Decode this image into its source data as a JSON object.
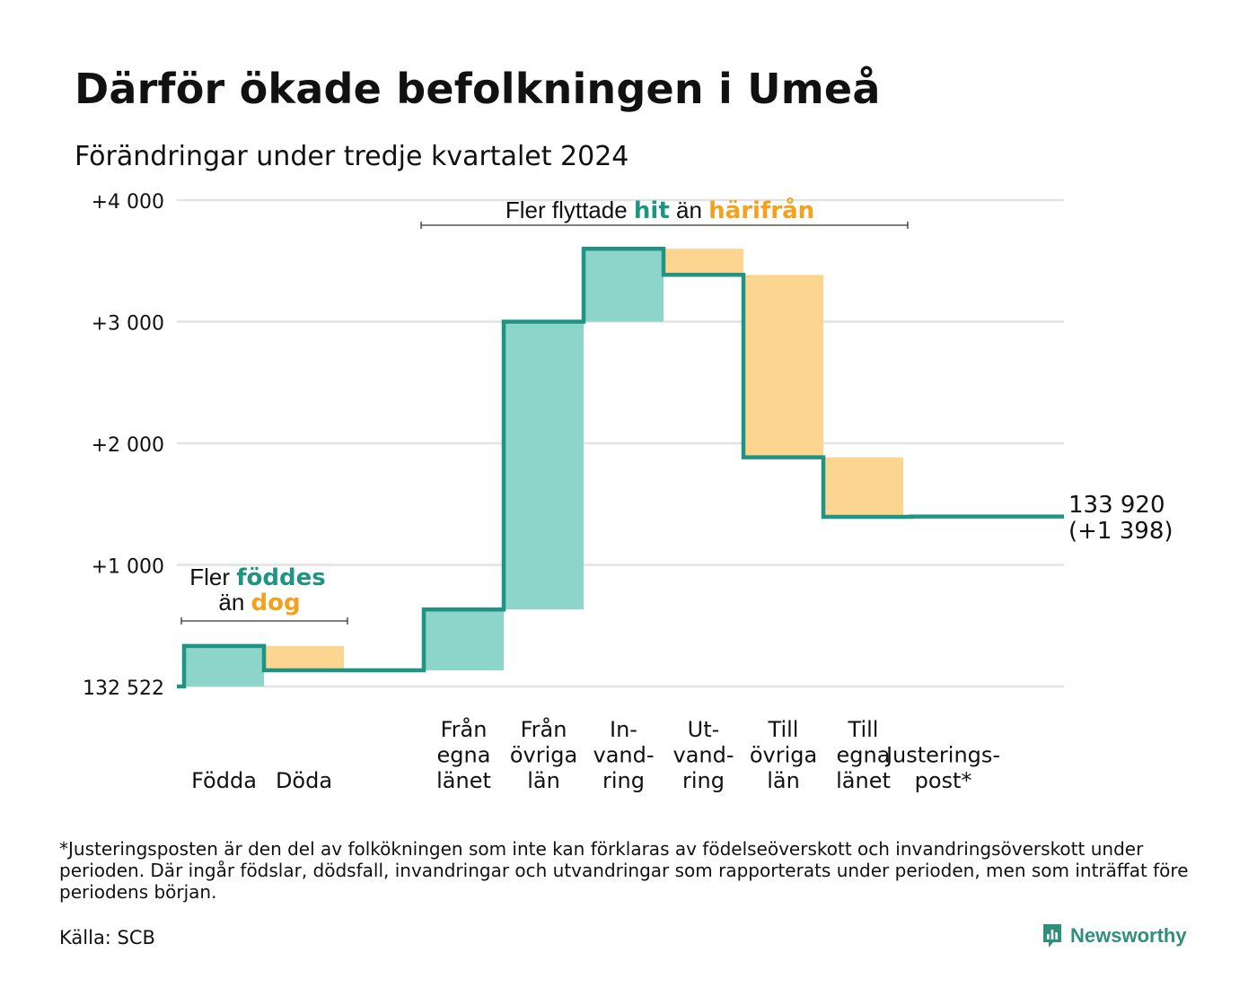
{
  "title": "Därför ökade befolkningen i Umeå",
  "subtitle": "Förändringar under tredje kvartalet 2024",
  "colors": {
    "increase": "#8dd5cb",
    "decrease": "#fcd690",
    "line": "#1f9483",
    "teal_text": "#1f9483",
    "orange_text": "#f4a11d",
    "grid": "#e3e3e3"
  },
  "annotations": {
    "births": {
      "line1_pre": "Fler ",
      "line1_em": "föddes",
      "line2_pre": "än ",
      "line2_em": "dog"
    },
    "moves": {
      "pre": "Fler flyttade ",
      "em1": "hit",
      "mid": " än ",
      "em2": "härifrån"
    }
  },
  "end_label": {
    "total": "133 920",
    "change": "(+1 398)"
  },
  "footnote": "*Justeringsposten är den del av folkökningen som inte kan förklaras av födelseöverskott och invandringsöverskott under perioden. Där ingår födslar, dödsfall, invandringar och utvandringar som rapporterats under perioden, men som inträffat före periodens början.",
  "source": "Källa: SCB",
  "brand": {
    "name": "Newsworthy",
    "icon": "newsworthy-logo-icon"
  },
  "chart_data": {
    "type": "waterfall",
    "baseline": 132522,
    "y_ticks": [
      "132 522",
      "+1 000",
      "+2 000",
      "+3 000",
      "+4 000"
    ],
    "ylim": [
      0,
      4000
    ],
    "grid": true,
    "steps": [
      {
        "label": [
          "Födda"
        ],
        "value": 333,
        "kind": "increase"
      },
      {
        "label": [
          "Döda"
        ],
        "value": -200,
        "kind": "decrease"
      },
      {
        "label": [],
        "value": 0,
        "kind": "none"
      },
      {
        "label": [
          "Från",
          "egna",
          "länet"
        ],
        "value": 500,
        "kind": "increase"
      },
      {
        "label": [
          "Från",
          "övriga",
          "län"
        ],
        "value": 2367,
        "kind": "increase"
      },
      {
        "label": [
          "In-",
          "vand-",
          "ring"
        ],
        "value": 600,
        "kind": "increase"
      },
      {
        "label": [
          "Ut-",
          "vand-",
          "ring"
        ],
        "value": -215,
        "kind": "decrease"
      },
      {
        "label": [
          "Till",
          "övriga",
          "län"
        ],
        "value": -1500,
        "kind": "decrease"
      },
      {
        "label": [
          "Till",
          "egna",
          "länet"
        ],
        "value": -490,
        "kind": "decrease"
      },
      {
        "label": [
          "Justerings-",
          "post*"
        ],
        "value": 3,
        "kind": "adjust"
      }
    ],
    "final_change": 1398,
    "final_total": 133920
  }
}
